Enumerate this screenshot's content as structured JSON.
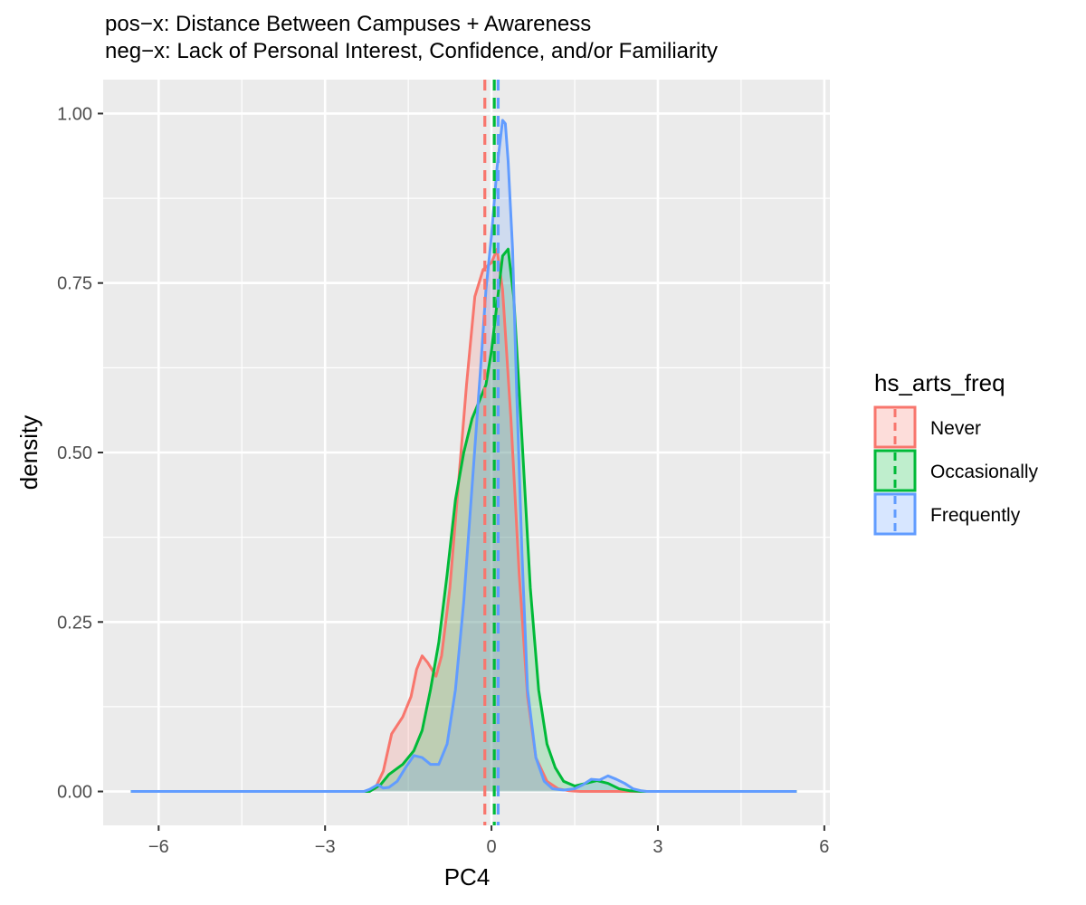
{
  "chart_data": {
    "type": "area",
    "title": "pos−x: Distance Between Campuses + Awareness",
    "subtitle": "neg−x: Lack of Personal Interest, Confidence, and/or Familiarity",
    "xlabel": "PC4",
    "ylabel": "density",
    "xlim": [
      -7,
      6.1
    ],
    "ylim": [
      -0.05,
      1.05
    ],
    "x_ticks": [
      -6,
      -3,
      0,
      3,
      6
    ],
    "x_tick_labels": [
      "−6",
      "−3",
      "0",
      "3",
      "6"
    ],
    "y_ticks": [
      0,
      0.25,
      0.5,
      0.75,
      1.0
    ],
    "y_tick_labels": [
      "0.00",
      "0.25",
      "0.50",
      "0.75",
      "1.00"
    ],
    "grid": true,
    "legend": {
      "title": "hs_arts_freq",
      "position": "right"
    },
    "series": [
      {
        "name": "Never",
        "color": "#F8766D",
        "mean": -0.12,
        "points": [
          [
            -6.5,
            0
          ],
          [
            -2.3,
            0
          ],
          [
            -2.1,
            0.004
          ],
          [
            -1.95,
            0.03
          ],
          [
            -1.8,
            0.085
          ],
          [
            -1.6,
            0.11
          ],
          [
            -1.45,
            0.14
          ],
          [
            -1.35,
            0.18
          ],
          [
            -1.25,
            0.2
          ],
          [
            -1.15,
            0.19
          ],
          [
            -1.0,
            0.17
          ],
          [
            -0.9,
            0.2
          ],
          [
            -0.75,
            0.3
          ],
          [
            -0.6,
            0.45
          ],
          [
            -0.45,
            0.6
          ],
          [
            -0.3,
            0.73
          ],
          [
            -0.15,
            0.77
          ],
          [
            0.0,
            0.78
          ],
          [
            0.1,
            0.8
          ],
          [
            0.2,
            0.74
          ],
          [
            0.35,
            0.55
          ],
          [
            0.5,
            0.32
          ],
          [
            0.65,
            0.14
          ],
          [
            0.8,
            0.05
          ],
          [
            1.0,
            0.015
          ],
          [
            1.2,
            0.004
          ],
          [
            1.4,
            0.001
          ],
          [
            1.6,
            0
          ],
          [
            5.5,
            0
          ]
        ]
      },
      {
        "name": "Occasionally",
        "color": "#00BA38",
        "mean": 0.05,
        "points": [
          [
            -6.5,
            0
          ],
          [
            -2.2,
            0
          ],
          [
            -2.0,
            0.01
          ],
          [
            -1.85,
            0.025
          ],
          [
            -1.6,
            0.04
          ],
          [
            -1.4,
            0.06
          ],
          [
            -1.25,
            0.09
          ],
          [
            -1.1,
            0.15
          ],
          [
            -0.95,
            0.22
          ],
          [
            -0.8,
            0.32
          ],
          [
            -0.65,
            0.43
          ],
          [
            -0.5,
            0.5
          ],
          [
            -0.35,
            0.55
          ],
          [
            -0.2,
            0.58
          ],
          [
            -0.1,
            0.6
          ],
          [
            0.0,
            0.65
          ],
          [
            0.1,
            0.72
          ],
          [
            0.2,
            0.79
          ],
          [
            0.3,
            0.8
          ],
          [
            0.4,
            0.73
          ],
          [
            0.55,
            0.52
          ],
          [
            0.7,
            0.3
          ],
          [
            0.85,
            0.15
          ],
          [
            1.0,
            0.07
          ],
          [
            1.15,
            0.035
          ],
          [
            1.3,
            0.015
          ],
          [
            1.5,
            0.008
          ],
          [
            1.7,
            0.012
          ],
          [
            1.9,
            0.016
          ],
          [
            2.1,
            0.012
          ],
          [
            2.3,
            0.004
          ],
          [
            2.5,
            0.001
          ],
          [
            2.7,
            0
          ],
          [
            5.5,
            0
          ]
        ]
      },
      {
        "name": "Frequently",
        "color": "#619CFF",
        "mean": 0.12,
        "points": [
          [
            -6.5,
            0
          ],
          [
            -2.3,
            0
          ],
          [
            -2.2,
            0.003
          ],
          [
            -2.05,
            0.01
          ],
          [
            -1.95,
            0.005
          ],
          [
            -1.85,
            0.006
          ],
          [
            -1.7,
            0.015
          ],
          [
            -1.55,
            0.035
          ],
          [
            -1.4,
            0.053
          ],
          [
            -1.25,
            0.05
          ],
          [
            -1.1,
            0.04
          ],
          [
            -0.95,
            0.04
          ],
          [
            -0.8,
            0.07
          ],
          [
            -0.65,
            0.15
          ],
          [
            -0.5,
            0.28
          ],
          [
            -0.35,
            0.45
          ],
          [
            -0.2,
            0.62
          ],
          [
            -0.1,
            0.74
          ],
          [
            0.0,
            0.82
          ],
          [
            0.1,
            0.92
          ],
          [
            0.2,
            0.99
          ],
          [
            0.25,
            0.985
          ],
          [
            0.3,
            0.93
          ],
          [
            0.38,
            0.8
          ],
          [
            0.45,
            0.6
          ],
          [
            0.55,
            0.35
          ],
          [
            0.65,
            0.15
          ],
          [
            0.8,
            0.05
          ],
          [
            0.95,
            0.015
          ],
          [
            1.1,
            0.004
          ],
          [
            1.3,
            0.002
          ],
          [
            1.5,
            0.004
          ],
          [
            1.65,
            0.01
          ],
          [
            1.8,
            0.018
          ],
          [
            1.95,
            0.017
          ],
          [
            2.1,
            0.023
          ],
          [
            2.25,
            0.018
          ],
          [
            2.4,
            0.012
          ],
          [
            2.55,
            0.004
          ],
          [
            2.7,
            0.001
          ],
          [
            2.8,
            0
          ],
          [
            5.5,
            0
          ]
        ]
      }
    ]
  }
}
